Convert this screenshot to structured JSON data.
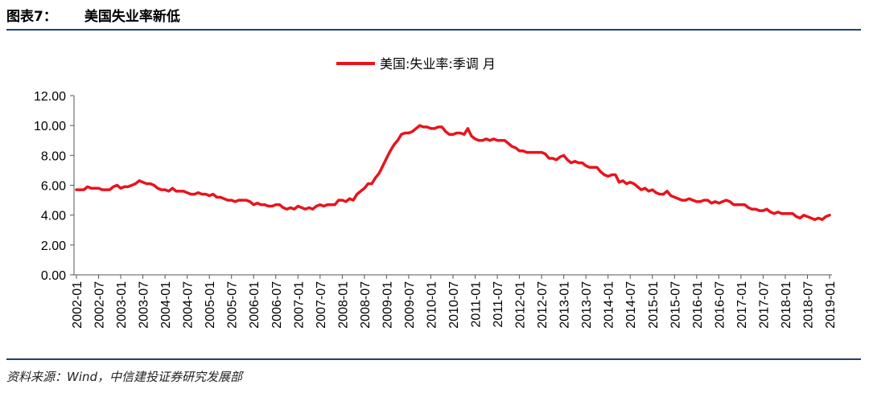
{
  "header": {
    "figure_number": "图表7：",
    "title": "美国失业率新低"
  },
  "source": "资料来源：Wind，中信建投证券研究发展部",
  "chart_data": {
    "type": "line",
    "title": "",
    "xlabel": "",
    "ylabel": "",
    "ylim": [
      0,
      12
    ],
    "y_ticks": [
      "0.00",
      "2.00",
      "4.00",
      "6.00",
      "8.00",
      "10.00",
      "12.00"
    ],
    "x_ticks": [
      "2002-01",
      "2002-07",
      "2003-01",
      "2003-07",
      "2004-01",
      "2004-07",
      "2005-01",
      "2005-07",
      "2006-01",
      "2006-07",
      "2007-01",
      "2007-07",
      "2008-01",
      "2008-07",
      "2009-01",
      "2009-07",
      "2010-01",
      "2010-07",
      "2011-01",
      "2011-07",
      "2012-01",
      "2012-07",
      "2013-01",
      "2013-07",
      "2014-01",
      "2014-07",
      "2015-01",
      "2015-07",
      "2016-01",
      "2016-07",
      "2017-01",
      "2017-07",
      "2018-01",
      "2018-07",
      "2019-01"
    ],
    "grid": false,
    "legend_position": "top",
    "color": "#e8141c",
    "series": [
      {
        "name": "美国:失业率:季调 月",
        "x_start": "2002-01",
        "values": [
          5.7,
          5.7,
          5.7,
          5.9,
          5.8,
          5.8,
          5.8,
          5.7,
          5.7,
          5.7,
          5.9,
          6.0,
          5.8,
          5.9,
          5.9,
          6.0,
          6.1,
          6.3,
          6.2,
          6.1,
          6.1,
          6.0,
          5.8,
          5.7,
          5.7,
          5.6,
          5.8,
          5.6,
          5.6,
          5.6,
          5.5,
          5.4,
          5.4,
          5.5,
          5.4,
          5.4,
          5.3,
          5.4,
          5.2,
          5.2,
          5.1,
          5.0,
          5.0,
          4.9,
          5.0,
          5.0,
          5.0,
          4.9,
          4.7,
          4.8,
          4.7,
          4.7,
          4.6,
          4.6,
          4.7,
          4.7,
          4.5,
          4.4,
          4.5,
          4.4,
          4.6,
          4.5,
          4.4,
          4.5,
          4.4,
          4.6,
          4.7,
          4.6,
          4.7,
          4.7,
          4.7,
          5.0,
          5.0,
          4.9,
          5.1,
          5.0,
          5.4,
          5.6,
          5.8,
          6.1,
          6.1,
          6.5,
          6.8,
          7.3,
          7.8,
          8.3,
          8.7,
          9.0,
          9.4,
          9.5,
          9.5,
          9.6,
          9.8,
          10.0,
          9.9,
          9.9,
          9.8,
          9.8,
          9.9,
          9.9,
          9.6,
          9.4,
          9.4,
          9.5,
          9.5,
          9.4,
          9.8,
          9.3,
          9.1,
          9.0,
          9.0,
          9.1,
          9.0,
          9.1,
          9.0,
          9.0,
          9.0,
          8.8,
          8.6,
          8.5,
          8.3,
          8.3,
          8.2,
          8.2,
          8.2,
          8.2,
          8.2,
          8.1,
          7.8,
          7.8,
          7.7,
          7.9,
          8.0,
          7.7,
          7.5,
          7.6,
          7.5,
          7.5,
          7.3,
          7.2,
          7.2,
          7.2,
          6.9,
          6.7,
          6.6,
          6.7,
          6.7,
          6.2,
          6.3,
          6.1,
          6.2,
          6.1,
          5.9,
          5.7,
          5.8,
          5.6,
          5.7,
          5.5,
          5.4,
          5.4,
          5.6,
          5.3,
          5.2,
          5.1,
          5.0,
          5.0,
          5.1,
          5.0,
          4.9,
          4.9,
          5.0,
          5.0,
          4.8,
          4.9,
          4.8,
          4.9,
          5.0,
          4.9,
          4.7,
          4.7,
          4.7,
          4.7,
          4.5,
          4.4,
          4.4,
          4.3,
          4.3,
          4.4,
          4.2,
          4.1,
          4.2,
          4.1,
          4.1,
          4.1,
          4.1,
          3.9,
          3.8,
          4.0,
          3.9,
          3.8,
          3.7,
          3.8,
          3.7,
          3.9,
          4.0
        ]
      }
    ]
  }
}
